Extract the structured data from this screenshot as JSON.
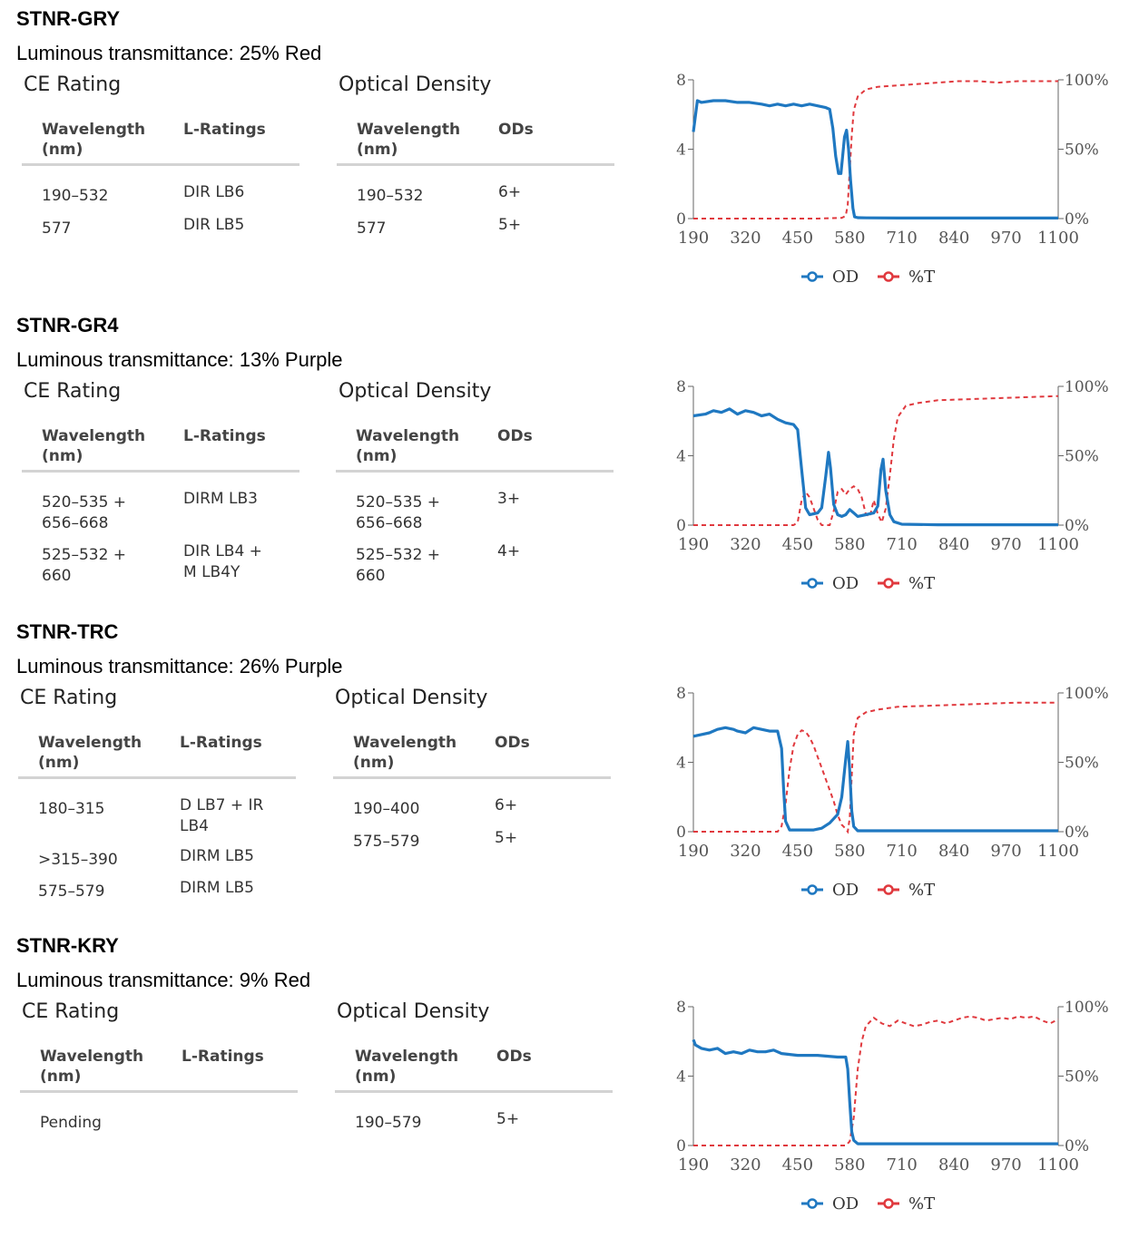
{
  "products": [
    {
      "title": "STNR-GRY",
      "luminous": "Luminous transmittance: 25% Red",
      "ce": {
        "heading": "CE Rating",
        "col1": "Wavelength\n(nm)",
        "col2": "L-Ratings",
        "rows": [
          {
            "wl": "190–532",
            "rating": "DIR LB6"
          },
          {
            "wl": "577",
            "rating": "DIR LB5"
          }
        ]
      },
      "od": {
        "heading": "Optical Density",
        "col1": "Wavelength\n(nm)",
        "col2": "ODs",
        "rows": [
          {
            "wl": "190–532",
            "od": "6+"
          },
          {
            "wl": "577",
            "od": "5+"
          }
        ]
      }
    },
    {
      "title": "STNR-GR4",
      "luminous": "Luminous transmittance: 13% Purple",
      "ce": {
        "heading": "CE Rating",
        "col1": "Wavelength\n(nm)",
        "col2": "L-Ratings",
        "rows": [
          {
            "wl": "520–535 +\n656–668",
            "rating": "DIRM LB3"
          },
          {
            "wl": "525–532 +\n660",
            "rating": "DIR LB4 +\nM LB4Y"
          }
        ]
      },
      "od": {
        "heading": "Optical Density",
        "col1": "Wavelength\n(nm)",
        "col2": "ODs",
        "rows": [
          {
            "wl": "520–535 +\n656–668",
            "od": "3+"
          },
          {
            "wl": "525–532 +\n660",
            "od": "4+"
          }
        ]
      }
    },
    {
      "title": "STNR-TRC",
      "luminous": "Luminous transmittance: 26% Purple",
      "ce": {
        "heading": "CE Rating",
        "col1": "Wavelength\n(nm)",
        "col2": "L-Ratings",
        "rows": [
          {
            "wl": "180–315",
            "rating": "D LB7 + IR\nLB4"
          },
          {
            "wl": ">315–390",
            "rating": "DIRM LB5"
          },
          {
            "wl": "575–579",
            "rating": "DIRM LB5"
          }
        ]
      },
      "od": {
        "heading": "Optical Density",
        "col1": "Wavelength\n(nm)",
        "col2": "ODs",
        "rows": [
          {
            "wl": "190–400",
            "od": "6+"
          },
          {
            "wl": "575–579",
            "od": "5+"
          }
        ]
      }
    },
    {
      "title": "STNR-KRY",
      "luminous": "Luminous transmittance: 9% Red",
      "ce": {
        "heading": "CE Rating",
        "col1": "Wavelength\n(nm)",
        "col2": "L-Ratings",
        "rows": [
          {
            "wl": "Pending",
            "rating": ""
          }
        ]
      },
      "od": {
        "heading": "Optical Density",
        "col1": "Wavelength\n(nm)",
        "col2": "ODs",
        "rows": [
          {
            "wl": "190–579",
            "od": "5+"
          }
        ]
      }
    }
  ],
  "chart_data": [
    {
      "type": "line",
      "product": "STNR-GRY",
      "x_ticks": [
        190,
        320,
        450,
        580,
        710,
        840,
        970,
        1100
      ],
      "y_left_ticks": [
        0,
        4,
        8
      ],
      "y_right_ticks": [
        "0%",
        "50%",
        "100%"
      ],
      "xlim": [
        190,
        1100
      ],
      "ylim_left": [
        0,
        8
      ],
      "ylim_right": [
        0,
        100
      ],
      "legend": [
        "OD",
        "%T"
      ],
      "legend_position": "bottom",
      "colors": {
        "OD": "#1f78c1",
        "%T": "#e0393e"
      },
      "series": [
        {
          "name": "OD",
          "axis": "left",
          "x": [
            190,
            200,
            210,
            240,
            270,
            300,
            330,
            360,
            380,
            400,
            420,
            440,
            460,
            480,
            500,
            520,
            530,
            538,
            545,
            552,
            558,
            562,
            567,
            572,
            577,
            582,
            588,
            592,
            600,
            620,
            700,
            800,
            900,
            1000,
            1100
          ],
          "y": [
            5.0,
            6.8,
            6.7,
            6.8,
            6.8,
            6.7,
            6.7,
            6.6,
            6.5,
            6.6,
            6.5,
            6.6,
            6.5,
            6.6,
            6.5,
            6.4,
            6.3,
            5.2,
            3.6,
            2.6,
            2.6,
            3.5,
            4.7,
            5.1,
            4.0,
            2.2,
            0.6,
            0.1,
            0.05,
            0.04,
            0.03,
            0.03,
            0.03,
            0.03,
            0.03
          ]
        },
        {
          "name": "%T",
          "axis": "right",
          "x": [
            190,
            300,
            400,
            500,
            560,
            570,
            575,
            580,
            585,
            590,
            600,
            620,
            650,
            700,
            750,
            800,
            850,
            900,
            950,
            1000,
            1050,
            1100
          ],
          "y": [
            0,
            0,
            0,
            0,
            0.5,
            2,
            10,
            35,
            60,
            78,
            88,
            93,
            95,
            96,
            97,
            98,
            99,
            99,
            98,
            99,
            99,
            99
          ]
        }
      ]
    },
    {
      "type": "line",
      "product": "STNR-GR4",
      "x_ticks": [
        190,
        320,
        450,
        580,
        710,
        840,
        970,
        1100
      ],
      "y_left_ticks": [
        0,
        4,
        8
      ],
      "y_right_ticks": [
        "0%",
        "50%",
        "100%"
      ],
      "xlim": [
        190,
        1100
      ],
      "ylim_left": [
        0,
        8
      ],
      "ylim_right": [
        0,
        100
      ],
      "legend": [
        "OD",
        "%T"
      ],
      "legend_position": "bottom",
      "colors": {
        "OD": "#1f78c1",
        "%T": "#e0393e"
      },
      "series": [
        {
          "name": "OD",
          "axis": "left",
          "x": [
            190,
            220,
            240,
            260,
            280,
            300,
            320,
            340,
            360,
            380,
            400,
            420,
            440,
            450,
            460,
            470,
            480,
            500,
            510,
            520,
            527,
            532,
            540,
            550,
            560,
            570,
            580,
            590,
            600,
            620,
            640,
            650,
            658,
            663,
            670,
            680,
            690,
            710,
            800,
            900,
            1000,
            1100
          ],
          "y": [
            6.3,
            6.4,
            6.6,
            6.5,
            6.7,
            6.4,
            6.6,
            6.5,
            6.3,
            6.4,
            6.1,
            5.9,
            5.8,
            5.5,
            3.2,
            1.0,
            0.6,
            0.7,
            1.0,
            2.8,
            4.2,
            3.3,
            1.2,
            0.6,
            0.5,
            0.6,
            0.9,
            0.7,
            0.5,
            0.6,
            0.7,
            1.1,
            3.2,
            3.8,
            2.0,
            0.6,
            0.2,
            0.05,
            0.02,
            0.02,
            0.02,
            0.02
          ]
        },
        {
          "name": "%T",
          "axis": "right",
          "x": [
            190,
            300,
            400,
            440,
            450,
            460,
            470,
            480,
            490,
            500,
            510,
            520,
            530,
            540,
            550,
            560,
            570,
            580,
            590,
            600,
            610,
            620,
            630,
            640,
            650,
            660,
            670,
            680,
            690,
            700,
            720,
            750,
            800,
            900,
            1000,
            1100
          ],
          "y": [
            0,
            0,
            0,
            0,
            2,
            18,
            24,
            20,
            12,
            4,
            0,
            0,
            0,
            10,
            24,
            26,
            22,
            26,
            28,
            26,
            20,
            8,
            6,
            18,
            8,
            2,
            12,
            36,
            62,
            78,
            86,
            88,
            90,
            91,
            92,
            93
          ]
        }
      ]
    },
    {
      "type": "line",
      "product": "STNR-TRC",
      "x_ticks": [
        190,
        320,
        450,
        580,
        710,
        840,
        970,
        1100
      ],
      "y_left_ticks": [
        0,
        4,
        8
      ],
      "y_right_ticks": [
        "0%",
        "50%",
        "100%"
      ],
      "xlim": [
        190,
        1100
      ],
      "ylim_left": [
        0,
        8
      ],
      "ylim_right": [
        0,
        100
      ],
      "legend": [
        "OD",
        "%T"
      ],
      "legend_position": "bottom",
      "colors": {
        "OD": "#1f78c1",
        "%T": "#e0393e"
      },
      "series": [
        {
          "name": "OD",
          "axis": "left",
          "x": [
            190,
            210,
            230,
            250,
            270,
            290,
            300,
            320,
            340,
            360,
            380,
            400,
            410,
            415,
            420,
            430,
            440,
            450,
            470,
            490,
            510,
            530,
            550,
            560,
            570,
            575,
            580,
            585,
            590,
            600,
            620,
            700,
            800,
            900,
            1000,
            1100
          ],
          "y": [
            5.5,
            5.6,
            5.7,
            5.9,
            6.0,
            5.9,
            5.8,
            5.7,
            6.0,
            5.9,
            5.8,
            5.8,
            4.8,
            2.5,
            0.6,
            0.1,
            0.1,
            0.1,
            0.1,
            0.1,
            0.2,
            0.5,
            1.0,
            2.0,
            4.2,
            5.2,
            3.5,
            1.2,
            0.3,
            0.05,
            0.05,
            0.05,
            0.05,
            0.05,
            0.05,
            0.05
          ]
        },
        {
          "name": "%T",
          "axis": "right",
          "x": [
            190,
            300,
            390,
            400,
            410,
            420,
            430,
            440,
            450,
            460,
            470,
            480,
            490,
            500,
            510,
            520,
            530,
            540,
            550,
            560,
            570,
            575,
            580,
            585,
            590,
            600,
            620,
            650,
            700,
            800,
            900,
            1000,
            1100
          ],
          "y": [
            0,
            0,
            0,
            0,
            4,
            20,
            45,
            62,
            70,
            73,
            72,
            68,
            62,
            54,
            46,
            38,
            30,
            22,
            12,
            5,
            2,
            0,
            10,
            40,
            70,
            82,
            86,
            88,
            90,
            91,
            92,
            93,
            93
          ]
        }
      ]
    },
    {
      "type": "line",
      "product": "STNR-KRY",
      "x_ticks": [
        190,
        320,
        450,
        580,
        710,
        840,
        970,
        1100
      ],
      "y_left_ticks": [
        0,
        4,
        8
      ],
      "y_right_ticks": [
        "0%",
        "50%",
        "100%"
      ],
      "xlim": [
        190,
        1100
      ],
      "ylim_left": [
        0,
        8
      ],
      "ylim_right": [
        0,
        100
      ],
      "legend": [
        "OD",
        "%T"
      ],
      "legend_position": "bottom",
      "colors": {
        "OD": "#1f78c1",
        "%T": "#e0393e"
      },
      "series": [
        {
          "name": "OD",
          "axis": "left",
          "x": [
            190,
            195,
            210,
            230,
            250,
            270,
            290,
            310,
            330,
            350,
            370,
            390,
            410,
            450,
            500,
            550,
            570,
            575,
            580,
            585,
            590,
            600,
            620,
            700,
            800,
            900,
            1000,
            1100
          ],
          "y": [
            6.1,
            5.8,
            5.6,
            5.5,
            5.6,
            5.3,
            5.4,
            5.3,
            5.5,
            5.4,
            5.4,
            5.5,
            5.3,
            5.2,
            5.2,
            5.1,
            5.1,
            4.4,
            2.5,
            0.8,
            0.3,
            0.1,
            0.1,
            0.1,
            0.1,
            0.1,
            0.1,
            0.1
          ]
        },
        {
          "name": "%T",
          "axis": "right",
          "x": [
            190,
            300,
            400,
            500,
            570,
            580,
            590,
            600,
            610,
            620,
            640,
            660,
            680,
            700,
            720,
            740,
            760,
            780,
            800,
            820,
            840,
            860,
            880,
            900,
            920,
            940,
            960,
            980,
            1000,
            1020,
            1040,
            1060,
            1080,
            1100
          ],
          "y": [
            0,
            0,
            0,
            0,
            0,
            3,
            20,
            55,
            75,
            86,
            92,
            88,
            86,
            90,
            88,
            86,
            87,
            89,
            90,
            88,
            90,
            92,
            93,
            92,
            90,
            91,
            92,
            91,
            93,
            92,
            93,
            90,
            88,
            91
          ]
        }
      ]
    }
  ]
}
